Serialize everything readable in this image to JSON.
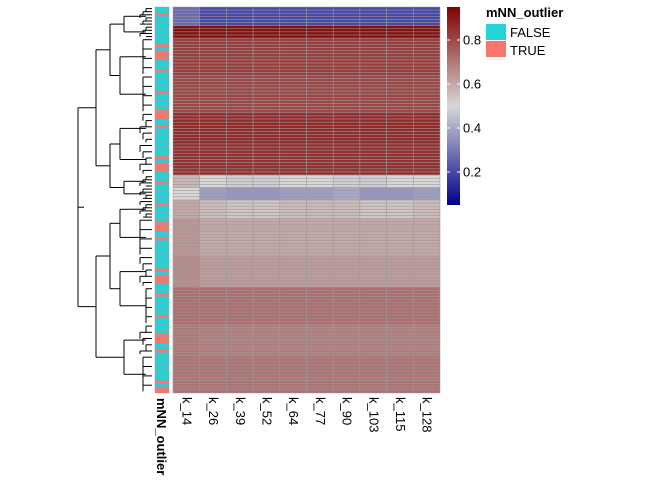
{
  "chart_data": {
    "type": "heatmap",
    "columns": [
      "k_14",
      "k_26",
      "k_39",
      "k_52",
      "k_64",
      "k_77",
      "k_90",
      "k_103",
      "k_115",
      "k_128"
    ],
    "annotation": {
      "name": "mNN_outlier",
      "levels": [
        {
          "label": "FALSE",
          "color": "#22d3d8"
        },
        {
          "label": "TRUE",
          "color": "#f8766d"
        }
      ]
    },
    "colorbar": {
      "min": 0.05,
      "max": 0.95,
      "ticks": [
        0.2,
        0.4,
        0.6,
        0.8
      ],
      "tick_labels": [
        "0.2",
        "0.4",
        "0.6",
        "0.8"
      ],
      "colors": [
        "#00008b",
        "#d8d8d8",
        "#7f0000"
      ]
    },
    "row_blocks": [
      {
        "rows": 6,
        "values": [
          0.27,
          0.2,
          0.2,
          0.2,
          0.2,
          0.2,
          0.2,
          0.2,
          0.2,
          0.2
        ]
      },
      {
        "rows": 4,
        "values": [
          0.92,
          0.92,
          0.92,
          0.92,
          0.92,
          0.92,
          0.92,
          0.92,
          0.92,
          0.92
        ]
      },
      {
        "rows": 12,
        "values": [
          0.82,
          0.82,
          0.82,
          0.82,
          0.82,
          0.82,
          0.82,
          0.82,
          0.82,
          0.82
        ]
      },
      {
        "rows": 12,
        "values": [
          0.8,
          0.8,
          0.8,
          0.8,
          0.8,
          0.8,
          0.8,
          0.8,
          0.8,
          0.8
        ]
      },
      {
        "rows": 10,
        "values": [
          0.86,
          0.86,
          0.86,
          0.86,
          0.86,
          0.86,
          0.86,
          0.86,
          0.86,
          0.86
        ]
      },
      {
        "rows": 10,
        "values": [
          0.85,
          0.85,
          0.85,
          0.85,
          0.85,
          0.85,
          0.85,
          0.85,
          0.85,
          0.85
        ]
      },
      {
        "rows": 4,
        "values": [
          0.57,
          0.5,
          0.48,
          0.48,
          0.5,
          0.5,
          0.48,
          0.48,
          0.5,
          0.5
        ]
      },
      {
        "rows": 4,
        "values": [
          0.5,
          0.38,
          0.36,
          0.36,
          0.38,
          0.38,
          0.4,
          0.36,
          0.36,
          0.38
        ]
      },
      {
        "rows": 6,
        "values": [
          0.6,
          0.56,
          0.54,
          0.54,
          0.56,
          0.56,
          0.56,
          0.54,
          0.54,
          0.56
        ]
      },
      {
        "rows": 12,
        "values": [
          0.64,
          0.6,
          0.6,
          0.6,
          0.6,
          0.6,
          0.6,
          0.6,
          0.6,
          0.6
        ]
      },
      {
        "rows": 10,
        "values": [
          0.66,
          0.63,
          0.63,
          0.63,
          0.63,
          0.63,
          0.63,
          0.63,
          0.63,
          0.63
        ]
      },
      {
        "rows": 12,
        "values": [
          0.72,
          0.72,
          0.72,
          0.72,
          0.72,
          0.72,
          0.72,
          0.72,
          0.72,
          0.72
        ]
      },
      {
        "rows": 10,
        "values": [
          0.7,
          0.69,
          0.69,
          0.69,
          0.69,
          0.69,
          0.69,
          0.69,
          0.69,
          0.69
        ]
      },
      {
        "rows": 12,
        "values": [
          0.71,
          0.71,
          0.71,
          0.71,
          0.71,
          0.71,
          0.71,
          0.71,
          0.71,
          0.71
        ]
      }
    ],
    "annotation_pattern": [
      "FALSE",
      "FALSE",
      "TRUE",
      "FALSE",
      "FALSE",
      "FALSE",
      "TRUE",
      "FALSE",
      "FALSE",
      "TRUE",
      "FALSE",
      "FALSE",
      "FALSE",
      "FALSE",
      "TRUE",
      "FALSE",
      "TRUE",
      "FALSE",
      "FALSE",
      "FALSE",
      "FALSE",
      "TRUE",
      "FALSE",
      "FALSE"
    ],
    "dendrogram": true
  }
}
